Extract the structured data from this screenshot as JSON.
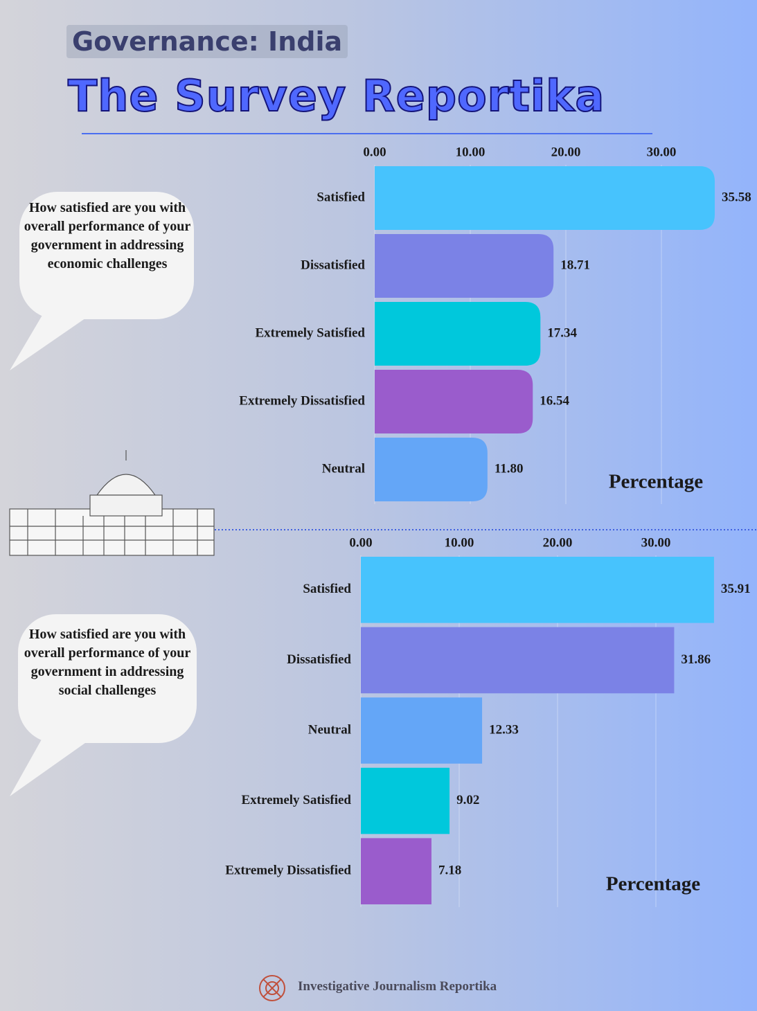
{
  "header": {
    "tag": "Governance: India",
    "title": "The Survey Reportika"
  },
  "chart_data": [
    {
      "type": "bar",
      "orientation": "horizontal",
      "annotation": "How satisfied are you with overall performance of your government in addressing economic challenges",
      "xlabel": "Percentage",
      "categories": [
        "Satisfied",
        "Dissatisfied",
        "Extremely Satisfied",
        "Extremely Dissatisfied",
        "Neutral"
      ],
      "values": [
        35.58,
        18.71,
        17.34,
        16.54,
        11.8
      ],
      "value_labels": [
        "35.58",
        "18.71",
        "17.34",
        "16.54",
        "11.80"
      ],
      "colors": [
        "#47c3fd",
        "#7b82e6",
        "#00c8dc",
        "#9a5ccc",
        "#64a6f7"
      ],
      "xlim": [
        0,
        40
      ],
      "xticks": [
        {
          "value": 0,
          "label": "0.00"
        },
        {
          "value": 10,
          "label": "10.00"
        },
        {
          "value": 20,
          "label": "20.00"
        },
        {
          "value": 30,
          "label": "30.00"
        }
      ],
      "grid": true
    },
    {
      "type": "bar",
      "orientation": "horizontal",
      "annotation": "How satisfied are you with overall performance of your government in addressing social challenges",
      "xlabel": "Percentage",
      "categories": [
        "Satisfied",
        "Dissatisfied",
        "Neutral",
        "Extremely Satisfied",
        "Extremely Dissatisfied"
      ],
      "values": [
        35.91,
        31.86,
        12.33,
        9.02,
        7.18
      ],
      "value_labels": [
        "35.91",
        "31.86",
        "12.33",
        "9.02",
        "7.18"
      ],
      "colors": [
        "#47c3fd",
        "#7b82e6",
        "#64a6f7",
        "#00c8dc",
        "#9a5ccc"
      ],
      "xlim": [
        0,
        40
      ],
      "xticks": [
        {
          "value": 0,
          "label": "0.00"
        },
        {
          "value": 10,
          "label": "10.00"
        },
        {
          "value": 20,
          "label": "20.00"
        },
        {
          "value": 30,
          "label": "30.00"
        }
      ],
      "grid": true
    }
  ],
  "footer": "Investigative Journalism Reportika"
}
